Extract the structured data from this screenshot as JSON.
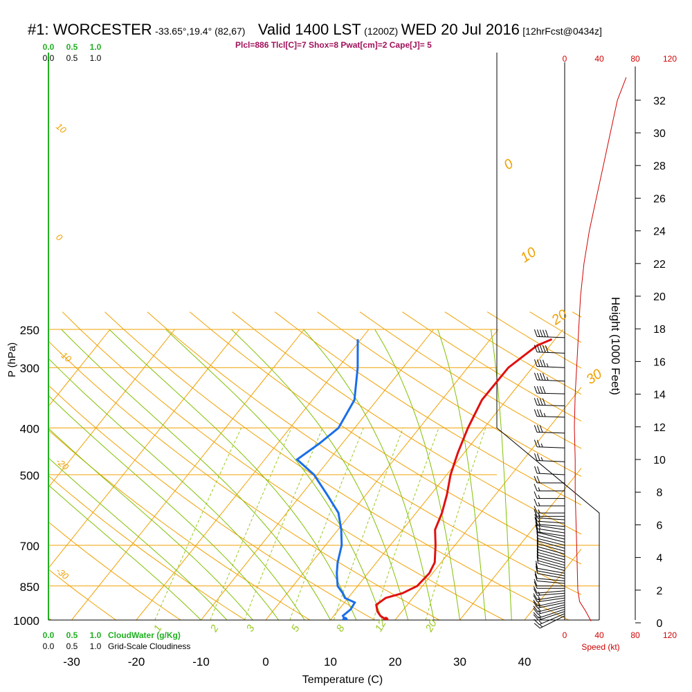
{
  "header": {
    "station": "#1: WORCESTER",
    "coords": "-33.65°,19.4° (82,67)",
    "valid": "Valid 1400 LST",
    "zulu": "(1200Z)",
    "date": "WED 20 Jul 2016",
    "forecast": "[12hrFcst@0434z]",
    "stats": "Plcl=886 Tlcl[C]=7 Shox=8 Pwat[cm]=2 Cape[J]= 5"
  },
  "colors": {
    "temperature": "#e01010",
    "dewpoint": "#1a6ee8",
    "isobar": "#f0a000",
    "dry_adiabat": "#f0a000",
    "moist_adiabat": "#80c000",
    "mixing_ratio": "#9ac820",
    "cloud_water": "#20b020",
    "wind_speed": "#d00000"
  },
  "chart_data": {
    "type": "line",
    "title": "",
    "xlabel": "Temperature (C)",
    "ylabel": "P (hPa)",
    "right_ylabel": "Height (1000 Feet)",
    "x_ticks": [
      -30,
      -20,
      -10,
      0,
      10,
      20,
      30,
      40
    ],
    "p_ticks": [
      250,
      300,
      400,
      500,
      700,
      850,
      1000
    ],
    "height_ticks": [
      0,
      2,
      4,
      6,
      8,
      10,
      12,
      14,
      16,
      18,
      20,
      22,
      24,
      26,
      28,
      30,
      32
    ],
    "speed_ticks": [
      "0",
      "40",
      "80",
      "120"
    ],
    "speed_label": "Speed (kt)",
    "cloud_ticks": [
      "0.0",
      "0.5",
      "1.0"
    ],
    "cloud_water_label": "CloudWater (g/Kg)",
    "cloudiness_label": "Grid-Scale Cloudiness",
    "dry_adiabat_labels": [
      "10",
      "0",
      "-10",
      "-20",
      "-30",
      "0",
      "10",
      "20",
      "30"
    ],
    "mixing_ratio_labels": [
      "1",
      "2",
      "3",
      "5",
      "8",
      "12",
      "20"
    ],
    "series": [
      {
        "name": "Temperature",
        "points": [
          [
            18.5,
            998
          ],
          [
            17.2,
            980
          ],
          [
            16.2,
            960
          ],
          [
            15.2,
            930
          ],
          [
            15.8,
            900
          ],
          [
            17.8,
            880
          ],
          [
            19.2,
            850
          ],
          [
            19.5,
            800
          ],
          [
            19.0,
            760
          ],
          [
            17.0,
            700
          ],
          [
            15.0,
            650
          ],
          [
            14.0,
            600
          ],
          [
            12.5,
            550
          ],
          [
            10.6,
            500
          ],
          [
            9.0,
            450
          ],
          [
            7.5,
            400
          ],
          [
            6.2,
            350
          ],
          [
            6.3,
            300
          ],
          [
            8.0,
            270
          ],
          [
            9.5,
            262
          ]
        ]
      },
      {
        "name": "Dewpoint",
        "points": [
          [
            12.2,
            998
          ],
          [
            11.4,
            980
          ],
          [
            11.8,
            950
          ],
          [
            11.6,
            920
          ],
          [
            9.5,
            900
          ],
          [
            8.6,
            880
          ],
          [
            6.9,
            850
          ],
          [
            5.2,
            800
          ],
          [
            4.0,
            760
          ],
          [
            2.5,
            700
          ],
          [
            0.5,
            650
          ],
          [
            -2.0,
            600
          ],
          [
            -6.0,
            550
          ],
          [
            -10.5,
            500
          ],
          [
            -15.0,
            465
          ],
          [
            -13.5,
            430
          ],
          [
            -12.5,
            400
          ],
          [
            -13.5,
            350
          ],
          [
            -17.0,
            300
          ],
          [
            -20.5,
            262
          ]
        ]
      },
      {
        "name": "Wind Speed",
        "points": [
          [
            30,
            0.1
          ],
          [
            24,
            0.7
          ],
          [
            17,
            1.3
          ],
          [
            15,
            2
          ],
          [
            14,
            4
          ],
          [
            13,
            6
          ],
          [
            12,
            8
          ],
          [
            12,
            10
          ],
          [
            11,
            12
          ],
          [
            12,
            14
          ],
          [
            14,
            16
          ],
          [
            16,
            18
          ],
          [
            18,
            20
          ],
          [
            22,
            22
          ],
          [
            28,
            24
          ],
          [
            36,
            26
          ],
          [
            44,
            28
          ],
          [
            52,
            30
          ],
          [
            60,
            32
          ],
          [
            70,
            33.4
          ]
        ]
      }
    ],
    "wind_barbs": [
      {
        "p": 980,
        "u": -12,
        "v": -6
      },
      {
        "p": 970,
        "u": -14,
        "v": -6
      },
      {
        "p": 960,
        "u": -15,
        "v": -5
      },
      {
        "p": 950,
        "u": -15,
        "v": -5
      },
      {
        "p": 940,
        "u": -15,
        "v": -4
      },
      {
        "p": 930,
        "u": -15,
        "v": -4
      },
      {
        "p": 920,
        "u": -15,
        "v": -3
      },
      {
        "p": 910,
        "u": -14,
        "v": -3
      },
      {
        "p": 900,
        "u": -14,
        "v": -2
      },
      {
        "p": 890,
        "u": -13,
        "v": -2
      },
      {
        "p": 880,
        "u": -13,
        "v": -1
      },
      {
        "p": 870,
        "u": -12,
        "v": -1
      },
      {
        "p": 860,
        "u": -12,
        "v": 0
      },
      {
        "p": 850,
        "u": -12,
        "v": 0
      },
      {
        "p": 840,
        "u": -11,
        "v": 1
      },
      {
        "p": 830,
        "u": -11,
        "v": 1
      },
      {
        "p": 820,
        "u": -11,
        "v": 2
      },
      {
        "p": 810,
        "u": -11,
        "v": 2
      },
      {
        "p": 800,
        "u": -11,
        "v": 2
      },
      {
        "p": 790,
        "u": -11,
        "v": 3
      },
      {
        "p": 780,
        "u": -11,
        "v": 3
      },
      {
        "p": 770,
        "u": -11,
        "v": 3
      },
      {
        "p": 760,
        "u": -11,
        "v": 3
      },
      {
        "p": 750,
        "u": -11,
        "v": 3
      },
      {
        "p": 740,
        "u": -11,
        "v": 3
      },
      {
        "p": 730,
        "u": -11,
        "v": 3
      },
      {
        "p": 720,
        "u": -11,
        "v": 3
      },
      {
        "p": 710,
        "u": -11,
        "v": 3
      },
      {
        "p": 700,
        "u": -12,
        "v": 3
      },
      {
        "p": 690,
        "u": -12,
        "v": 3
      },
      {
        "p": 680,
        "u": -12,
        "v": 3
      },
      {
        "p": 670,
        "u": -13,
        "v": 2
      },
      {
        "p": 660,
        "u": -13,
        "v": 2
      },
      {
        "p": 650,
        "u": -13,
        "v": 2
      },
      {
        "p": 640,
        "u": -13,
        "v": 1
      },
      {
        "p": 630,
        "u": -14,
        "v": 1
      },
      {
        "p": 620,
        "u": -14,
        "v": 1
      },
      {
        "p": 610,
        "u": -14,
        "v": 0
      },
      {
        "p": 600,
        "u": -15,
        "v": 0
      },
      {
        "p": 580,
        "u": -15,
        "v": 0
      },
      {
        "p": 560,
        "u": -16,
        "v": 0
      },
      {
        "p": 540,
        "u": -17,
        "v": 0
      },
      {
        "p": 520,
        "u": -19,
        "v": 0
      },
      {
        "p": 500,
        "u": -20,
        "v": 1
      },
      {
        "p": 470,
        "u": -23,
        "v": 1
      },
      {
        "p": 440,
        "u": -26,
        "v": 1
      },
      {
        "p": 410,
        "u": -30,
        "v": 1
      },
      {
        "p": 380,
        "u": -34,
        "v": 1
      },
      {
        "p": 360,
        "u": -38,
        "v": 1
      },
      {
        "p": 340,
        "u": -41,
        "v": 1
      },
      {
        "p": 320,
        "u": -44,
        "v": 2
      },
      {
        "p": 300,
        "u": -47,
        "v": 2
      },
      {
        "p": 280,
        "u": -50,
        "v": 2
      },
      {
        "p": 260,
        "u": -52,
        "v": 2
      }
    ]
  }
}
